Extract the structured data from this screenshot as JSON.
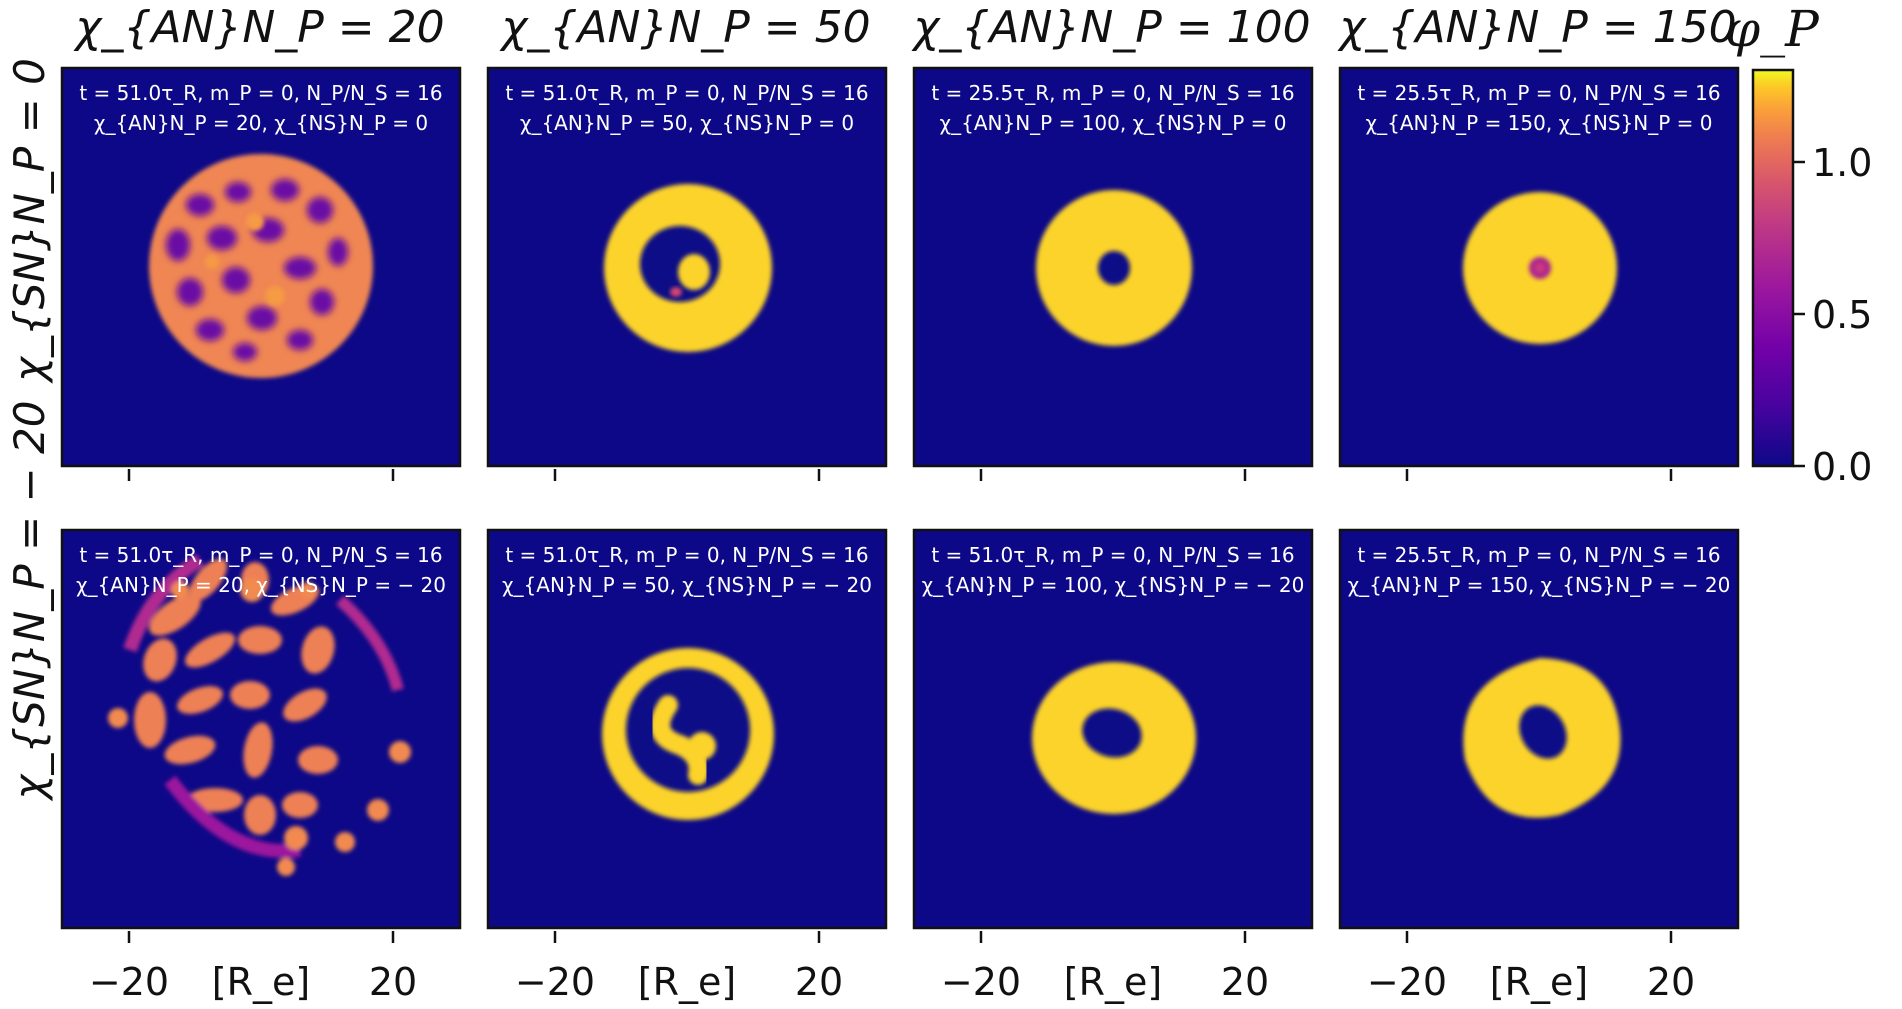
{
  "chart_data": {
    "type": "heatmap",
    "title": "",
    "column_titles": [
      "χ_{AN}N_P = 20",
      "χ_{AN}N_P = 50",
      "χ_{AN}N_P = 100",
      "χ_{AN}N_P = 150"
    ],
    "row_titles": [
      "χ_{SN}N_P = 0",
      "χ_{SN}N_P = − 20"
    ],
    "x_axis": {
      "label": "[R_e]",
      "ticks": [
        "−20",
        "20"
      ],
      "tick_values": [
        -20,
        20
      ],
      "range": [
        -30,
        30
      ]
    },
    "colorbar": {
      "label": "φ_P",
      "ticks": [
        "0.0",
        "0.5",
        "1.0"
      ],
      "tick_values": [
        0.0,
        0.5,
        1.0
      ],
      "range": [
        0.0,
        1.3
      ],
      "colormap": "plasma"
    },
    "colors": {
      "background": "#0d0887",
      "peak": "#fced25",
      "mid": "#f2844b",
      "low": "#9c179e"
    },
    "panels": [
      {
        "row": 0,
        "col": 0,
        "annotation": [
          "t = 51.0τ_R, m_P = 0, N_P/N_S = 16",
          "χ_{AN}N_P = 20, χ_{NS}N_P = 0"
        ],
        "t": 51.0,
        "chi_AN_NP": 20,
        "chi_NS_NP": 0,
        "pattern": "disc with network of small voids",
        "max_phi": 0.95
      },
      {
        "row": 0,
        "col": 1,
        "annotation": [
          "t = 51.0τ_R, m_P = 0, N_P/N_S = 16",
          "χ_{AN}N_P = 50, χ_{NS}N_P = 0"
        ],
        "t": 51.0,
        "chi_AN_NP": 50,
        "chi_NS_NP": 0,
        "pattern": "ring with inner blob",
        "max_phi": 1.25
      },
      {
        "row": 0,
        "col": 2,
        "annotation": [
          "t = 25.5τ_R, m_P = 0, N_P/N_S = 16",
          "χ_{AN}N_P = 100, χ_{NS}N_P = 0"
        ],
        "t": 25.5,
        "chi_AN_NP": 100,
        "chi_NS_NP": 0,
        "pattern": "disc with small central hole",
        "max_phi": 1.25
      },
      {
        "row": 0,
        "col": 3,
        "annotation": [
          "t = 25.5τ_R, m_P = 0, N_P/N_S = 16",
          "χ_{AN}N_P = 150, χ_{NS}N_P = 0"
        ],
        "t": 25.5,
        "chi_AN_NP": 150,
        "chi_NS_NP": 0,
        "pattern": "disc with low-density center",
        "max_phi": 1.25
      },
      {
        "row": 1,
        "col": 0,
        "annotation": [
          "t = 51.0τ_R, m_P = 0, N_P/N_S = 16",
          "χ_{AN}N_P = 20, χ_{NS}N_P = − 20"
        ],
        "t": 51.0,
        "chi_AN_NP": 20,
        "chi_NS_NP": -20,
        "pattern": "fragmented droplets",
        "max_phi": 0.95
      },
      {
        "row": 1,
        "col": 1,
        "annotation": [
          "t = 51.0τ_R, m_P = 0, N_P/N_S = 16",
          "χ_{AN}N_P = 50, χ_{NS}N_P = − 20"
        ],
        "t": 51.0,
        "chi_AN_NP": 50,
        "chi_NS_NP": -20,
        "pattern": "ring with inner crescent",
        "max_phi": 1.25
      },
      {
        "row": 1,
        "col": 2,
        "annotation": [
          "t = 51.0τ_R, m_P = 0, N_P/N_S = 16",
          "χ_{AN}N_P = 100, χ_{NS}N_P = − 20"
        ],
        "t": 51.0,
        "chi_AN_NP": 100,
        "chi_NS_NP": -20,
        "pattern": "disc with elliptical hole",
        "max_phi": 1.25
      },
      {
        "row": 1,
        "col": 3,
        "annotation": [
          "t = 25.5τ_R, m_P = 0, N_P/N_S = 16",
          "χ_{AN}N_P = 150, χ_{NS}N_P = − 20"
        ],
        "t": 25.5,
        "chi_AN_NP": 150,
        "chi_NS_NP": -20,
        "pattern": "disc with tilted elliptical hole",
        "max_phi": 1.25
      }
    ]
  }
}
